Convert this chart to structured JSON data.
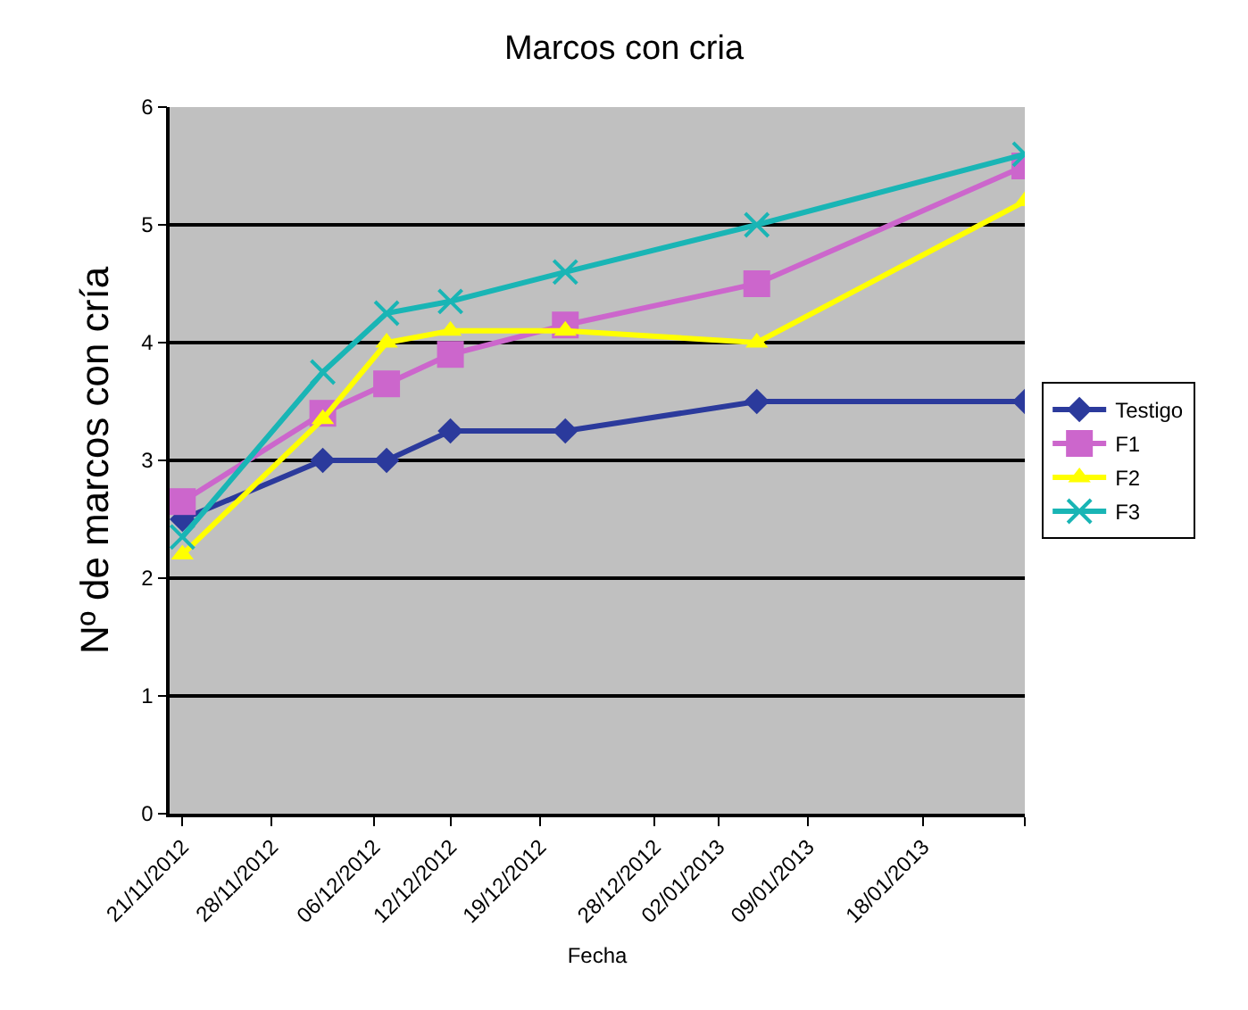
{
  "chart_data": {
    "type": "line",
    "title": "Marcos con cria",
    "xlabel": "Fecha",
    "ylabel": "Nº de marcos con cría",
    "x": [
      "2012-11-21",
      "2012-12-02",
      "2012-12-07",
      "2012-12-12",
      "2012-12-21",
      "2013-01-05",
      "2013-01-26"
    ],
    "series": [
      {
        "name": "Testigo",
        "color": "#2b3a9c",
        "marker": "diamond",
        "values": [
          2.5,
          3,
          3,
          3.25,
          3.25,
          3.5,
          3.5
        ]
      },
      {
        "name": "F1",
        "color": "#cc66cc",
        "marker": "square",
        "values": [
          2.65,
          3.4,
          3.65,
          3.9,
          4.15,
          4.5,
          5.5
        ]
      },
      {
        "name": "F2",
        "color": "#ffff00",
        "marker": "triangle",
        "values": [
          2.2,
          3.35,
          4,
          4.1,
          4.1,
          4,
          5.2
        ]
      },
      {
        "name": "F3",
        "color": "#19b5b5",
        "marker": "cross",
        "values": [
          2.35,
          3.75,
          4.25,
          4.35,
          4.6,
          5,
          5.6
        ]
      }
    ],
    "xlim": [
      "2012-11-20",
      "2013-01-26"
    ],
    "xticks": [
      {
        "value": "2012-11-21",
        "label": "21/11/2012"
      },
      {
        "value": "2012-11-28",
        "label": "28/11/2012"
      },
      {
        "value": "2012-12-06",
        "label": "06/12/2012"
      },
      {
        "value": "2012-12-12",
        "label": "12/12/2012"
      },
      {
        "value": "2012-12-19",
        "label": "19/12/2012"
      },
      {
        "value": "2012-12-28",
        "label": "28/12/2012"
      },
      {
        "value": "2013-01-02",
        "label": "02/01/2013"
      },
      {
        "value": "2013-01-09",
        "label": "09/01/2013"
      },
      {
        "value": "2013-01-18",
        "label": "18/01/2013"
      },
      {
        "value": "2013-01-26",
        "label": null
      }
    ],
    "ylim": [
      0,
      6
    ],
    "yticks": [
      0,
      1,
      2,
      3,
      4,
      5,
      6
    ],
    "grid": "y",
    "legend": "right",
    "line_style": "solid"
  }
}
